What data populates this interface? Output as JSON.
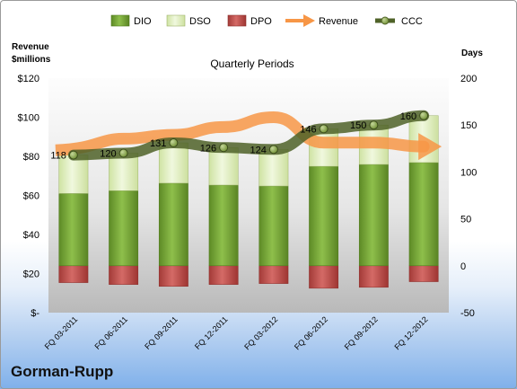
{
  "company": "Gorman-Rupp",
  "chart_data": {
    "type": "bar",
    "title": "Quarterly Periods",
    "left_axis_title": [
      "Revenue",
      "$millions"
    ],
    "right_axis_title": "Days",
    "left_ticks": [
      "$-",
      "$20",
      "$40",
      "$60",
      "$80",
      "$100",
      "$120"
    ],
    "right_ticks": [
      "-50",
      "0",
      "50",
      "100",
      "150",
      "200"
    ],
    "ylim_left": [
      0,
      120
    ],
    "ylim_right": [
      -50,
      200
    ],
    "categories": [
      "FQ 03-2011",
      "FQ 06-2011",
      "FQ 09-2011",
      "FQ 12-2011",
      "FQ 03-2012",
      "FQ 06-2012",
      "FQ 09-2012",
      "FQ 12-2012"
    ],
    "legend": [
      "DIO",
      "DSO",
      "DPO",
      "Revenue",
      "CCC"
    ],
    "series": [
      {
        "name": "DIO",
        "type": "bar",
        "axis": "days",
        "values": [
          77,
          80,
          88,
          86,
          85,
          106,
          108,
          110
        ]
      },
      {
        "name": "DSO",
        "type": "bar",
        "axis": "days",
        "values": [
          41,
          40,
          43,
          40,
          39,
          40,
          42,
          50
        ]
      },
      {
        "name": "DPO",
        "type": "bar",
        "axis": "days",
        "values": [
          -18,
          -20,
          -22,
          -20,
          -19,
          -24,
          -23,
          -17
        ]
      },
      {
        "name": "Revenue",
        "type": "line",
        "axis": "revenue",
        "values": [
          84,
          89,
          91,
          95,
          100,
          87,
          87,
          85
        ]
      },
      {
        "name": "CCC",
        "type": "line",
        "axis": "days",
        "values": [
          118,
          120,
          131,
          126,
          124,
          146,
          150,
          160
        ]
      }
    ],
    "ccc_labels": [
      "118",
      "120",
      "131",
      "126",
      "124",
      "146",
      "150",
      "160"
    ],
    "grid": false,
    "legend_position": "top",
    "colors": {
      "DIO": "#77a33a",
      "DSO": "#dfeec1",
      "DPO": "#c0504d",
      "Revenue": "#f79646",
      "CCC": "#4f6228"
    }
  }
}
